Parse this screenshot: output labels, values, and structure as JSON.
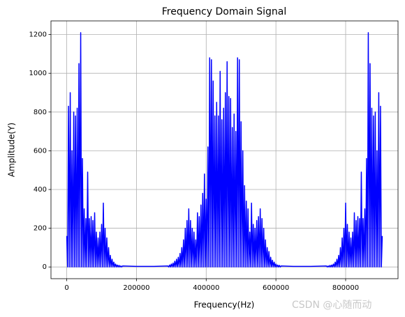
{
  "chart_data": {
    "type": "line",
    "title": "Frequency Domain Signal",
    "xlabel": "Frequency(Hz)",
    "ylabel": "Amplitude(Y)",
    "watermark": "CSDN @心随而动",
    "grid": true,
    "xlim": [
      -45250,
      950250
    ],
    "ylim": [
      -60.5,
      1270.5
    ],
    "xticks": [
      0,
      200000,
      400000,
      600000,
      800000
    ],
    "yticks": [
      0,
      200,
      400,
      600,
      800,
      1000,
      1200
    ],
    "x": [
      0,
      2500,
      5000,
      7500,
      10000,
      12500,
      15000,
      17500,
      20000,
      22500,
      25000,
      27500,
      30000,
      32500,
      35000,
      37500,
      40000,
      42500,
      45000,
      47500,
      50000,
      52500,
      55000,
      57500,
      60000,
      62500,
      65000,
      67500,
      70000,
      72500,
      75000,
      77500,
      80000,
      82500,
      85000,
      87500,
      90000,
      92500,
      95000,
      97500,
      100000,
      102500,
      105000,
      107500,
      110000,
      112500,
      115000,
      117500,
      120000,
      122500,
      125000,
      127500,
      130000,
      132500,
      135000,
      137500,
      140000,
      142500,
      145000,
      147500,
      150000,
      152500,
      155000,
      157500,
      160000,
      200000,
      250000,
      290000,
      292500,
      295000,
      297500,
      300000,
      302500,
      305000,
      307500,
      310000,
      312500,
      315000,
      317500,
      320000,
      322500,
      325000,
      327500,
      330000,
      332500,
      335000,
      337500,
      340000,
      342500,
      345000,
      347500,
      350000,
      352500,
      355000,
      357500,
      360000,
      362500,
      365000,
      367500,
      370000,
      372500,
      375000,
      377500,
      380000,
      382500,
      385000,
      387500,
      390000,
      392500,
      395000,
      397500,
      400000,
      402500,
      405000,
      407500,
      410000,
      412500,
      415000,
      417500,
      420000,
      422500,
      425000,
      427500,
      430000,
      432500,
      435000,
      437500,
      440000,
      442500,
      445000,
      447500,
      450000,
      452500,
      455000,
      457500,
      460000,
      462500,
      465000,
      467500,
      470000,
      472500,
      475000,
      477500,
      480000,
      482500,
      485000,
      487500,
      490000,
      492500,
      495000,
      497500,
      500000,
      502500,
      505000,
      507500,
      510000,
      512500,
      515000,
      517500,
      520000,
      522500,
      525000,
      527500,
      530000,
      532500,
      535000,
      537500,
      540000,
      542500,
      545000,
      547500,
      550000,
      552500,
      555000,
      557500,
      560000,
      562500,
      565000,
      567500,
      570000,
      572500,
      575000,
      577500,
      580000,
      582500,
      585000,
      587500,
      590000,
      592500,
      595000,
      597500,
      600000,
      602500,
      605000,
      607500,
      610000,
      612500,
      615000,
      650000,
      700000,
      745000,
      747500,
      750000,
      752500,
      755000,
      757500,
      760000,
      762500,
      765000,
      767500,
      770000,
      772500,
      775000,
      777500,
      780000,
      782500,
      785000,
      787500,
      790000,
      792500,
      795000,
      797500,
      800000,
      802500,
      805000,
      807500,
      810000,
      812500,
      815000,
      817500,
      820000,
      822500,
      825000,
      827500,
      830000,
      832500,
      835000,
      837500,
      840000,
      842500,
      845000,
      847500,
      850000,
      852500,
      855000,
      857500,
      860000,
      862500,
      865000,
      867500,
      870000,
      872500,
      875000,
      877500,
      880000,
      882500,
      885000,
      887500,
      890000,
      892500,
      895000,
      897500,
      900000,
      902500,
      905000
    ],
    "series": [
      {
        "name": "Amplitude",
        "color": "#0000ff",
        "values": [
          160,
          0,
          830,
          0,
          900,
          0,
          600,
          0,
          800,
          0,
          780,
          0,
          820,
          0,
          1050,
          0,
          1210,
          0,
          560,
          0,
          300,
          0,
          250,
          0,
          490,
          0,
          250,
          0,
          260,
          0,
          240,
          0,
          280,
          0,
          180,
          0,
          150,
          0,
          180,
          0,
          220,
          0,
          330,
          0,
          200,
          0,
          150,
          0,
          100,
          0,
          60,
          0,
          40,
          0,
          25,
          0,
          15,
          0,
          10,
          0,
          8,
          0,
          5,
          0,
          5,
          3,
          3,
          5,
          0,
          10,
          0,
          15,
          0,
          20,
          0,
          30,
          0,
          40,
          0,
          50,
          0,
          70,
          0,
          100,
          0,
          140,
          0,
          200,
          0,
          240,
          0,
          300,
          0,
          240,
          0,
          200,
          0,
          180,
          0,
          140,
          0,
          280,
          0,
          260,
          0,
          320,
          0,
          380,
          0,
          480,
          0,
          350,
          0,
          620,
          0,
          1080,
          0,
          1070,
          0,
          960,
          0,
          780,
          0,
          850,
          0,
          780,
          0,
          1010,
          0,
          760,
          0,
          820,
          0,
          900,
          0,
          1060,
          0,
          880,
          0,
          870,
          0,
          720,
          0,
          790,
          0,
          700,
          0,
          1080,
          0,
          1070,
          0,
          750,
          0,
          600,
          0,
          420,
          0,
          340,
          0,
          300,
          0,
          180,
          0,
          330,
          0,
          220,
          0,
          200,
          0,
          240,
          0,
          260,
          0,
          300,
          0,
          250,
          0,
          200,
          0,
          140,
          0,
          100,
          0,
          80,
          0,
          50,
          0,
          35,
          0,
          25,
          0,
          15,
          0,
          10,
          0,
          8,
          0,
          5,
          3,
          3,
          5,
          0,
          5,
          0,
          8,
          0,
          10,
          0,
          15,
          0,
          25,
          0,
          40,
          0,
          60,
          0,
          100,
          0,
          150,
          0,
          200,
          0,
          330,
          0,
          220,
          0,
          180,
          0,
          150,
          0,
          180,
          0,
          280,
          0,
          240,
          0,
          260,
          0,
          250,
          0,
          490,
          0,
          250,
          0,
          300,
          0,
          560,
          0,
          1210,
          0,
          1050,
          0,
          820,
          0,
          780,
          0,
          800,
          0,
          600,
          0,
          900,
          0,
          830,
          0,
          160
        ]
      }
    ]
  }
}
